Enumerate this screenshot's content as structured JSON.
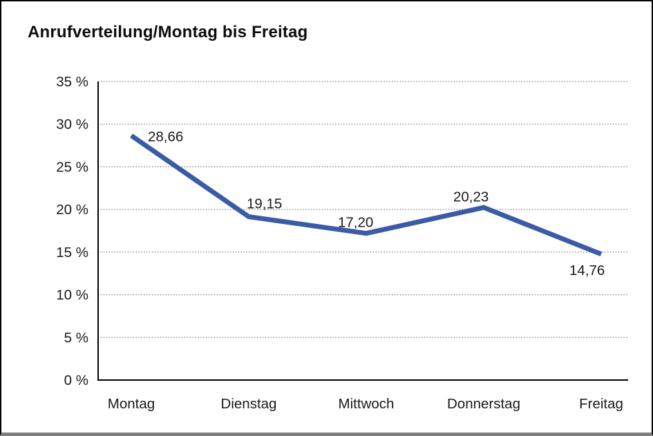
{
  "window": {
    "title": "Anrufverteilung/Montag bis Freitag"
  },
  "chart_data": {
    "type": "line",
    "title": "Anrufverteilung/Montag bis Freitag",
    "categories": [
      "Montag",
      "Dienstag",
      "Mittwoch",
      "Donnerstag",
      "Freitag"
    ],
    "values": [
      28.66,
      19.15,
      17.2,
      20.23,
      14.76
    ],
    "value_labels": [
      "28,66",
      "19,15",
      "17,20",
      "20,23",
      "14,76"
    ],
    "xlabel": "",
    "ylabel": "",
    "ylim": [
      0,
      35
    ],
    "ytick_step": 5,
    "ytick_labels": [
      "0 %",
      "5 %",
      "10 %",
      "15 %",
      "20 %",
      "25 %",
      "30 %",
      "35 %"
    ],
    "grid": "horizontal-dotted",
    "legend": "none",
    "colors": {
      "line": "#3A5BA5",
      "axis": "#000000",
      "gridline": "#4a4a4a",
      "text": "#1a1a1a",
      "title": "#0d0d0d",
      "background": "#ffffff",
      "frame_border": "#000000",
      "frame_bottom_edge": "#7e7e7e"
    }
  }
}
